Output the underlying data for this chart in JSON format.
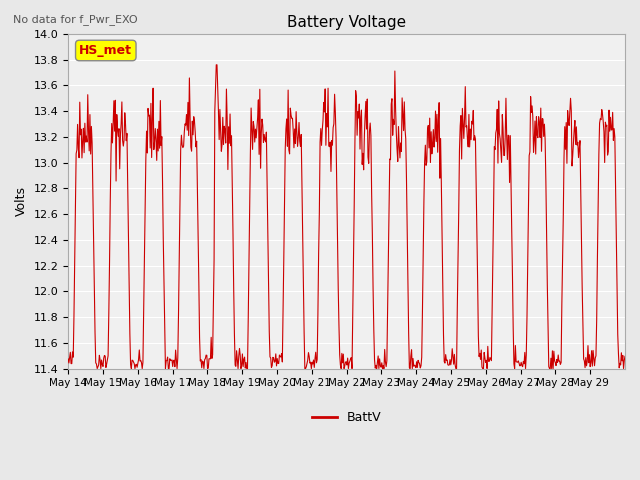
{
  "title": "Battery Voltage",
  "subtitle": "No data for f_Pwr_EXO",
  "ylabel": "Volts",
  "legend_label": "BattV",
  "legend_line_color": "#cc0000",
  "ylim": [
    11.4,
    14.0
  ],
  "yticks": [
    11.4,
    11.6,
    11.8,
    12.0,
    12.2,
    12.4,
    12.6,
    12.8,
    13.0,
    13.2,
    13.4,
    13.6,
    13.8,
    14.0
  ],
  "xtick_positions": [
    0,
    1,
    2,
    3,
    4,
    5,
    6,
    7,
    8,
    9,
    10,
    11,
    12,
    13,
    14,
    15
  ],
  "xtick_labels": [
    "May 14",
    "May 15",
    "May 16",
    "May 17",
    "May 18",
    "May 19",
    "May 20",
    "May 21",
    "May 22",
    "May 23",
    "May 24",
    "May 25",
    "May 26",
    "May 27",
    "May 28",
    "May 29"
  ],
  "line_color": "#cc0000",
  "bg_color": "#e8e8e8",
  "plot_bg_color": "#f0f0f0",
  "grid_color": "#ffffff",
  "hs_met_label": "HS_met",
  "hs_met_color": "#ffff00",
  "hs_met_text_color": "#cc0000",
  "days": 16,
  "points_per_day": 48
}
